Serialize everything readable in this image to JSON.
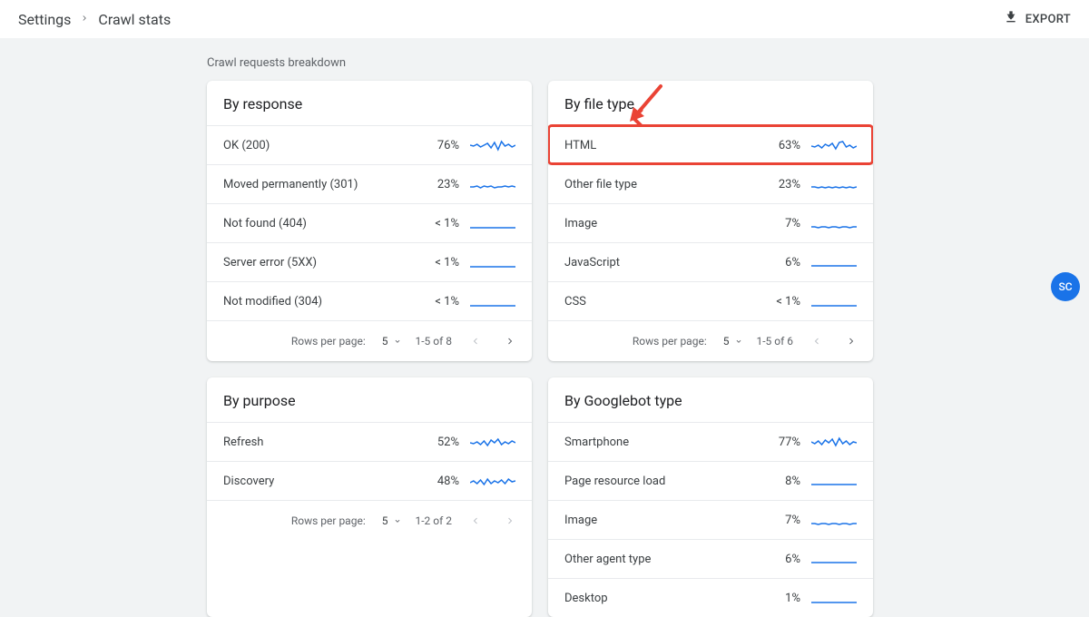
{
  "breadcrumb": {
    "parent": "Settings",
    "current": "Crawl stats"
  },
  "export_label": "EXPORT",
  "section_label": "Crawl requests breakdown",
  "avatar_initials": "SC",
  "colors": {
    "spark_stroke": "#1a73e8",
    "highlight_border": "#ea4335",
    "annotation": "#ea4335",
    "card_bg": "#ffffff",
    "page_bg": "#f1f3f4"
  },
  "cards": {
    "response": {
      "title": "By response",
      "rows": [
        {
          "label": "OK (200)",
          "pct": "76%",
          "spark": [
            9,
            10,
            8,
            11,
            9,
            7,
            12,
            6,
            14,
            5,
            10,
            8,
            11,
            9
          ]
        },
        {
          "label": "Moved permanently (301)",
          "pct": "23%",
          "spark": [
            12,
            12,
            11,
            13,
            11,
            12,
            11,
            13,
            12,
            12,
            11,
            12,
            11,
            12
          ]
        },
        {
          "label": "Not found (404)",
          "pct": "< 1%",
          "spark": [
            14,
            14,
            14,
            14,
            14,
            14,
            14,
            14,
            14,
            14,
            14,
            14,
            14,
            14
          ]
        },
        {
          "label": "Server error (5XX)",
          "pct": "< 1%",
          "spark": [
            14,
            14,
            14,
            14,
            14,
            14,
            14,
            14,
            14,
            14,
            14,
            14,
            14,
            14
          ]
        },
        {
          "label": "Not modified (304)",
          "pct": "< 1%",
          "spark": [
            14,
            14,
            14,
            14,
            14,
            14,
            14,
            14,
            14,
            14,
            14,
            14,
            14,
            14
          ]
        }
      ],
      "pager": {
        "rows_per_page_label": "Rows per page:",
        "rows_per_page": "5",
        "range": "1-5 of 8",
        "prev_enabled": false,
        "next_enabled": true
      }
    },
    "filetype": {
      "title": "By file type",
      "rows": [
        {
          "label": "HTML",
          "pct": "63%",
          "spark": [
            10,
            11,
            9,
            12,
            8,
            10,
            7,
            13,
            6,
            5,
            11,
            9,
            12,
            10
          ],
          "highlighted": true
        },
        {
          "label": "Other file type",
          "pct": "23%",
          "spark": [
            12,
            12,
            13,
            12,
            13,
            12,
            13,
            12,
            13,
            12,
            13,
            12,
            13,
            12
          ]
        },
        {
          "label": "Image",
          "pct": "7%",
          "spark": [
            13,
            13,
            14,
            13,
            13,
            14,
            13,
            13,
            14,
            13,
            13,
            14,
            13,
            13
          ]
        },
        {
          "label": "JavaScript",
          "pct": "6%",
          "spark": [
            13,
            13,
            13,
            13,
            13,
            13,
            13,
            13,
            13,
            13,
            13,
            13,
            13,
            13
          ]
        },
        {
          "label": "CSS",
          "pct": "< 1%",
          "spark": [
            14,
            14,
            14,
            14,
            14,
            14,
            14,
            14,
            14,
            14,
            14,
            14,
            14,
            14
          ]
        }
      ],
      "pager": {
        "rows_per_page_label": "Rows per page:",
        "rows_per_page": "5",
        "range": "1-5 of 6",
        "prev_enabled": false,
        "next_enabled": true
      }
    },
    "purpose": {
      "title": "By purpose",
      "rows": [
        {
          "label": "Refresh",
          "pct": "52%",
          "spark": [
            10,
            11,
            9,
            12,
            8,
            13,
            7,
            10,
            6,
            12,
            9,
            11,
            8,
            10
          ]
        },
        {
          "label": "Discovery",
          "pct": "48%",
          "spark": [
            11,
            9,
            12,
            8,
            13,
            7,
            12,
            9,
            11,
            8,
            12,
            7,
            10,
            9
          ]
        }
      ],
      "pager": {
        "rows_per_page_label": "Rows per page:",
        "rows_per_page": "5",
        "range": "1-2 of 2",
        "prev_enabled": false,
        "next_enabled": false
      }
    },
    "googlebot": {
      "title": "By Googlebot type",
      "rows": [
        {
          "label": "Smartphone",
          "pct": "77%",
          "spark": [
            9,
            11,
            8,
            12,
            7,
            10,
            6,
            13,
            5,
            11,
            8,
            12,
            9,
            10
          ]
        },
        {
          "label": "Page resource load",
          "pct": "8%",
          "spark": [
            13,
            13,
            13,
            13,
            13,
            13,
            13,
            13,
            13,
            13,
            13,
            13,
            13,
            13
          ]
        },
        {
          "label": "Image",
          "pct": "7%",
          "spark": [
            13,
            13,
            14,
            13,
            13,
            14,
            13,
            13,
            14,
            13,
            13,
            14,
            13,
            13
          ]
        },
        {
          "label": "Other agent type",
          "pct": "6%",
          "spark": [
            13,
            13,
            13,
            13,
            13,
            13,
            13,
            13,
            13,
            13,
            13,
            13,
            13,
            13
          ]
        },
        {
          "label": "Desktop",
          "pct": "1%",
          "spark": [
            14,
            14,
            14,
            14,
            14,
            14,
            14,
            14,
            14,
            14,
            14,
            14,
            14,
            14
          ]
        }
      ],
      "pager": null
    }
  }
}
